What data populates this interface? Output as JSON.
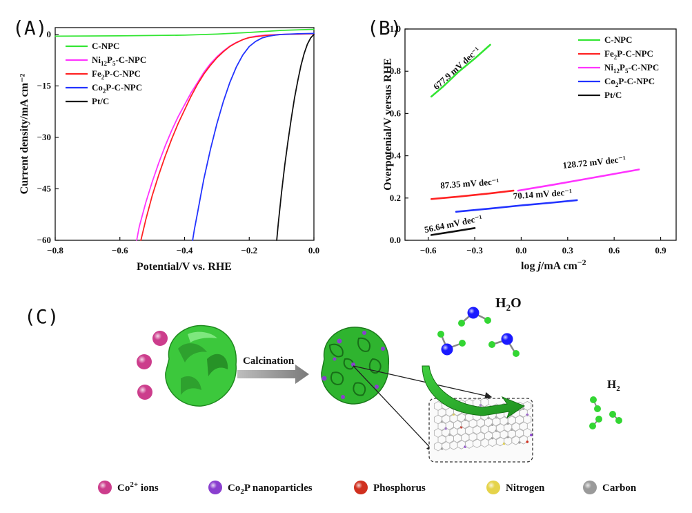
{
  "panels": {
    "a": "(A)",
    "b": "(B)",
    "c": "(C)"
  },
  "colors": {
    "C-NPC": "#33e533",
    "Ni12P5-C-NPC": "#ff33ff",
    "Fe2P-C-NPC": "#ff2222",
    "Co2P-C-NPC": "#2233ff",
    "Pt/C": "#111111"
  },
  "chart_data": [
    {
      "type": "line",
      "panel": "A",
      "xlabel": "Potential/V vs. RHE",
      "ylabel": "Current density/mA cm⁻²",
      "xlim": [
        -0.8,
        0.0
      ],
      "ylim": [
        -60,
        2
      ],
      "xticks": [
        -0.8,
        -0.6,
        -0.4,
        -0.2,
        0.0
      ],
      "xtick_labels": [
        "−0.8",
        "−0.6",
        "−0.4",
        "−0.2",
        "0.0"
      ],
      "yticks": [
        0,
        -15,
        -30,
        -45,
        -60
      ],
      "ytick_labels": [
        "0",
        "−15",
        "−30",
        "−45",
        "−60"
      ],
      "legend_position": "top-left",
      "series": [
        {
          "name": "C-NPC",
          "sub": [
            [
              "C-NPC",
              ""
            ]
          ],
          "color": "#33e533",
          "x": [
            -0.8,
            -0.6,
            -0.4,
            -0.3,
            -0.2,
            -0.1,
            0.0
          ],
          "y": [
            -0.5,
            -0.4,
            -0.2,
            0.1,
            0.6,
            1.2,
            1.5
          ]
        },
        {
          "name": "Ni12P5-C-NPC",
          "sub": [
            [
              "Ni",
              ""
            ],
            [
              "12",
              "sub"
            ],
            [
              "P",
              ""
            ],
            [
              "5",
              "sub"
            ],
            [
              "-C-NPC",
              ""
            ]
          ],
          "color": "#ff33ff",
          "x": [
            -0.548,
            -0.54,
            -0.52,
            -0.5,
            -0.48,
            -0.46,
            -0.44,
            -0.42,
            -0.4,
            -0.38,
            -0.36,
            -0.34,
            -0.32,
            -0.3,
            -0.28,
            -0.26,
            -0.24,
            -0.22,
            -0.2,
            -0.18,
            -0.15,
            -0.1,
            0.0
          ],
          "y": [
            -60,
            -56,
            -49,
            -43,
            -37.5,
            -32.5,
            -28,
            -24,
            -20.5,
            -17,
            -14,
            -11,
            -8.5,
            -6.5,
            -4.8,
            -3.4,
            -2.3,
            -1.5,
            -0.9,
            -0.5,
            -0.2,
            0.0,
            0.2
          ]
        },
        {
          "name": "Fe2P-C-NPC",
          "sub": [
            [
              "Fe",
              ""
            ],
            [
              "2",
              "sub"
            ],
            [
              "P-C-NPC",
              ""
            ]
          ],
          "color": "#ff2222",
          "x": [
            -0.535,
            -0.53,
            -0.52,
            -0.5,
            -0.48,
            -0.46,
            -0.44,
            -0.42,
            -0.4,
            -0.38,
            -0.36,
            -0.34,
            -0.32,
            -0.3,
            -0.28,
            -0.26,
            -0.24,
            -0.22,
            -0.2,
            -0.15,
            -0.1,
            0.0
          ],
          "y": [
            -60,
            -58,
            -54,
            -47,
            -41,
            -35.5,
            -30.5,
            -26,
            -22,
            -18,
            -14.5,
            -11.5,
            -9,
            -6.8,
            -5,
            -3.5,
            -2.4,
            -1.5,
            -0.9,
            -0.3,
            0.0,
            0.2
          ]
        },
        {
          "name": "Co2P-C-NPC",
          "sub": [
            [
              "Co",
              ""
            ],
            [
              "2",
              "sub"
            ],
            [
              "P-C-NPC",
              ""
            ]
          ],
          "color": "#2233ff",
          "x": [
            -0.375,
            -0.37,
            -0.36,
            -0.35,
            -0.34,
            -0.32,
            -0.3,
            -0.28,
            -0.26,
            -0.24,
            -0.22,
            -0.2,
            -0.18,
            -0.16,
            -0.14,
            -0.12,
            -0.1,
            -0.05,
            0.0
          ],
          "y": [
            -60,
            -57,
            -52,
            -47,
            -42,
            -33.5,
            -26,
            -19.5,
            -14,
            -9.5,
            -6,
            -3.5,
            -2,
            -1,
            -0.5,
            -0.2,
            0.0,
            0.2,
            0.3
          ]
        },
        {
          "name": "Pt/C",
          "sub": [
            [
              "Pt/C",
              ""
            ]
          ],
          "color": "#111111",
          "x": [
            -0.115,
            -0.11,
            -0.1,
            -0.09,
            -0.08,
            -0.07,
            -0.06,
            -0.05,
            -0.04,
            -0.03,
            -0.02,
            -0.01,
            0.0
          ],
          "y": [
            -60,
            -55,
            -46,
            -38,
            -31,
            -24.5,
            -18.5,
            -13.5,
            -9,
            -5.5,
            -2.8,
            -1,
            0.0
          ]
        }
      ]
    },
    {
      "type": "line",
      "panel": "B",
      "xlabel_parts": [
        [
          "log ",
          ""
        ],
        [
          "j",
          "italic"
        ],
        [
          "/mA cm",
          ""
        ],
        [
          "−2",
          "sup"
        ]
      ],
      "ylabel": "Overpotenial/V versus  RHE",
      "xlim": [
        -0.75,
        1.0
      ],
      "ylim": [
        0.0,
        1.0
      ],
      "xticks": [
        -0.6,
        -0.3,
        0.0,
        0.3,
        0.6,
        0.9
      ],
      "xtick_labels": [
        "−0.6",
        "−0.3",
        "0.0",
        "0.3",
        "0.6",
        "0.9"
      ],
      "yticks": [
        0.0,
        0.2,
        0.4,
        0.6,
        0.8,
        1.0
      ],
      "ytick_labels": [
        "0.0",
        "0.2",
        "0.4",
        "0.6",
        "0.8",
        "1.0"
      ],
      "legend_position": "top-right",
      "series": [
        {
          "name": "C-NPC",
          "sub": [
            [
              "C-NPC",
              ""
            ]
          ],
          "color": "#33e533",
          "x": [
            -0.58,
            -0.5,
            -0.4,
            -0.3,
            -0.2
          ],
          "y": [
            0.68,
            0.73,
            0.8,
            0.86,
            0.925
          ],
          "label": "677.9 mV dec⁻¹"
        },
        {
          "name": "Fe2P-C-NPC",
          "sub": [
            [
              "Fe",
              ""
            ],
            [
              "2",
              "sub"
            ],
            [
              "P-C-NPC",
              ""
            ]
          ],
          "color": "#ff2222",
          "x": [
            -0.58,
            -0.4,
            -0.2,
            -0.05
          ],
          "y": [
            0.195,
            0.207,
            0.222,
            0.235
          ],
          "label": "87.35 mV dec⁻¹"
        },
        {
          "name": "Ni12P5-C-NPC",
          "sub": [
            [
              "Ni",
              ""
            ],
            [
              "12",
              "sub"
            ],
            [
              "P",
              ""
            ],
            [
              "5",
              "sub"
            ],
            [
              "-C-NPC",
              ""
            ]
          ],
          "color": "#ff33ff",
          "x": [
            -0.02,
            0.2,
            0.4,
            0.6,
            0.76
          ],
          "y": [
            0.235,
            0.262,
            0.288,
            0.314,
            0.335
          ],
          "label": "128.72 mV dec⁻¹"
        },
        {
          "name": "Co2P-C-NPC",
          "sub": [
            [
              "Co",
              ""
            ],
            [
              "2",
              "sub"
            ],
            [
              "P-C-NPC",
              ""
            ]
          ],
          "color": "#2233ff",
          "x": [
            -0.42,
            -0.2,
            0.0,
            0.2,
            0.36
          ],
          "y": [
            0.135,
            0.15,
            0.165,
            0.178,
            0.19
          ],
          "label": "70.14 mV dec⁻¹"
        },
        {
          "name": "Pt/C",
          "sub": [
            [
              "Pt/C",
              ""
            ]
          ],
          "color": "#111111",
          "x": [
            -0.58,
            -0.45,
            -0.3
          ],
          "y": [
            0.025,
            0.04,
            0.058
          ],
          "label": "56.64 mV dec⁻¹"
        }
      ]
    }
  ],
  "schematic": {
    "arrow_label": "Calcination",
    "water": {
      "base": "H",
      "sub": "2",
      "rest": "O"
    },
    "hydrogen": {
      "base": "H",
      "sub": "2"
    },
    "legend": [
      {
        "key": "co_ions",
        "color": "#cc3d8c",
        "parts": [
          [
            "Co",
            ""
          ],
          [
            "2+",
            "sup"
          ],
          [
            " ions",
            ""
          ]
        ]
      },
      {
        "key": "co2p",
        "color": "#8a3fcf",
        "parts": [
          [
            "Co",
            ""
          ],
          [
            "2",
            "sub"
          ],
          [
            "P nanoparticles",
            ""
          ]
        ]
      },
      {
        "key": "phosphorus",
        "color": "#d0301f",
        "parts": [
          [
            "Phosphorus",
            ""
          ]
        ]
      },
      {
        "key": "nitrogen",
        "color": "#e5d34a",
        "parts": [
          [
            "Nitrogen",
            ""
          ]
        ]
      },
      {
        "key": "carbon",
        "color": "#9a9a9a",
        "parts": [
          [
            "Carbon",
            ""
          ]
        ]
      }
    ]
  }
}
